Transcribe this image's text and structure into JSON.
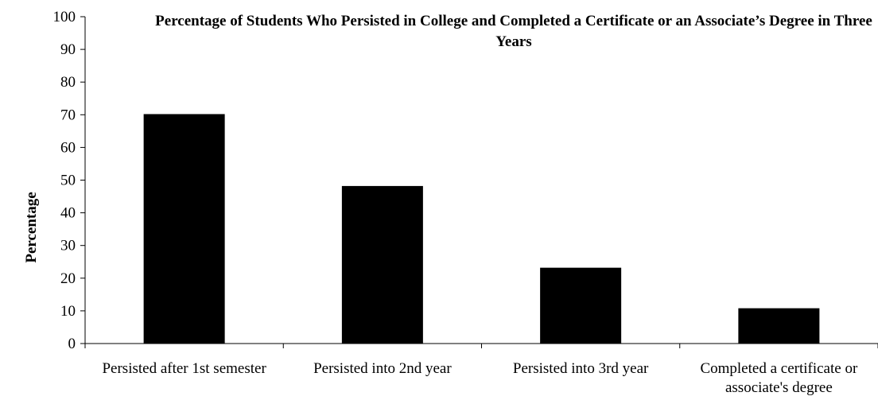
{
  "chart_data": {
    "type": "bar",
    "title": "Percentage of Students Who Persisted in College and Completed a Certificate or an Associate’s Degree in Three Years",
    "xlabel": "",
    "ylabel": "Percentage",
    "ylim": [
      0,
      100
    ],
    "yticks": [
      "0",
      "10",
      "20",
      "30",
      "40",
      "50",
      "60",
      "70",
      "80",
      "90",
      "100"
    ],
    "categories": [
      "Persisted after 1st semester",
      "Persisted into 2nd year",
      "Persisted into 3rd year",
      "Completed a certificate or associate's degree"
    ],
    "values": [
      70.2,
      48.2,
      23.2,
      10.8
    ],
    "grid": false,
    "legend": "none",
    "bar_color": "#000000"
  }
}
